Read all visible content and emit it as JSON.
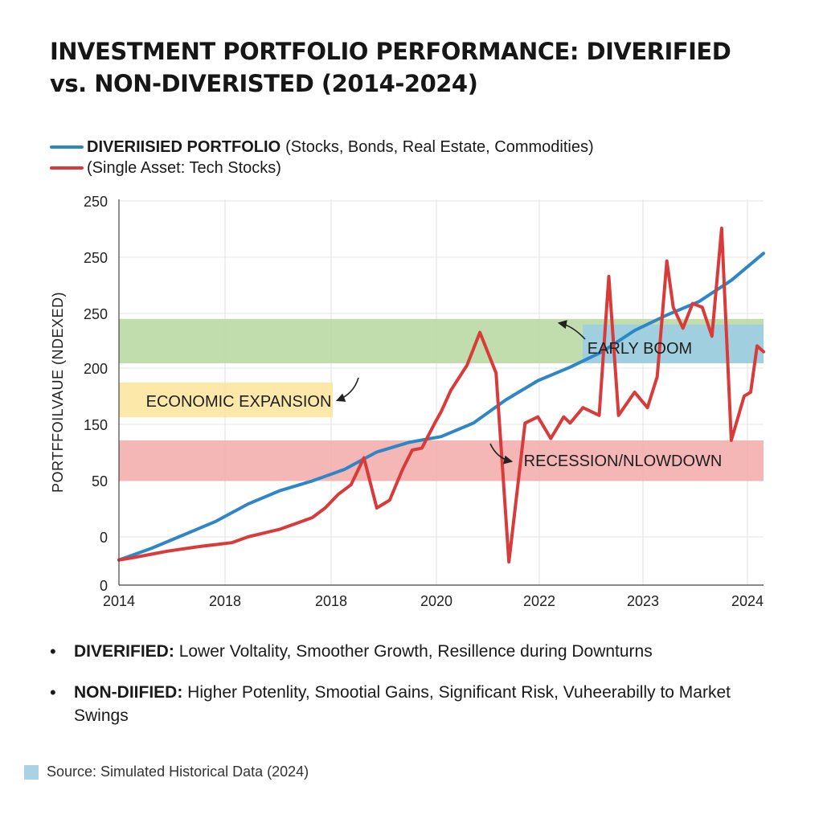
{
  "colors": {
    "diversified": "#2f86c6",
    "single_asset": "#d93a3a",
    "band_green": "#b6d7a0",
    "band_blue": "#9ecfe2",
    "band_yellow": "#fce6a0",
    "band_red": "#f3a9a9"
  },
  "legend": [
    {
      "name": "DIVERIISIED PORTFOLIO",
      "detail": "(Stocks, Bonds, Real Estate, Commodities)"
    },
    {
      "name": "",
      "detail": "(Single Asset: Tech Stocks)"
    }
  ],
  "bullets": [
    {
      "label": "DIVERIFIED:",
      "text": "Lower Voltality, Smoother Growth, Resillence during Downturns"
    },
    {
      "label": "NON-DIIFIED:",
      "text": "Higher Potenlity, Smootial Gains, Significant Risk, Vuheerabilly to Market Swings"
    }
  ],
  "source": "Source: Simulated Historical Data (2024)",
  "chart_data": {
    "type": "line",
    "title": "INVESTMENT PORTFOLIO PERFORMANCE: DIVERIFIED vs. NON-DIVERISTED (2014-2024)",
    "ylabel": "PORTFFOILVAUE (NDEXED)",
    "xlabel": "",
    "xlim": [
      0,
      1
    ],
    "ylim": [
      0,
      1
    ],
    "x_tick_labels": [
      "2014",
      "2018",
      "2018",
      "2020",
      "2022",
      "2023",
      "2024"
    ],
    "y_tick_labels": [
      "250",
      "250",
      "250",
      "200",
      "150",
      "50",
      "0",
      "0"
    ],
    "grid": true,
    "legend_position": "top-left",
    "bands": [
      {
        "label": "EARLY BOOM",
        "y_from": 0.575,
        "y_to": 0.69
      },
      {
        "label": "ECONOMIC EXPANSION",
        "y_from": 0.435,
        "y_to": 0.525
      },
      {
        "label": "RECESSION/NLOWDOWN",
        "y_from": 0.27,
        "y_to": 0.375
      }
    ],
    "series": [
      {
        "name": "DIVERIISIED PORTFOLIO",
        "x": [
          0,
          0.05,
          0.1,
          0.15,
          0.2,
          0.25,
          0.3,
          0.35,
          0.4,
          0.45,
          0.5,
          0.55,
          0.6,
          0.65,
          0.7,
          0.75,
          0.8,
          0.85,
          0.9,
          0.95,
          1
        ],
        "y": [
          0.065,
          0.095,
          0.13,
          0.165,
          0.21,
          0.245,
          0.27,
          0.3,
          0.345,
          0.37,
          0.385,
          0.42,
          0.48,
          0.53,
          0.565,
          0.605,
          0.66,
          0.7,
          0.735,
          0.79,
          0.86
        ]
      },
      {
        "name": "(Single Asset: Tech Stocks)",
        "x": [
          0,
          0.025,
          0.05,
          0.075,
          0.1,
          0.125,
          0.15,
          0.175,
          0.2,
          0.225,
          0.25,
          0.275,
          0.3,
          0.32,
          0.34,
          0.36,
          0.38,
          0.4,
          0.42,
          0.44,
          0.455,
          0.47,
          0.49,
          0.5,
          0.515,
          0.54,
          0.56,
          0.585,
          0.605,
          0.63,
          0.65,
          0.67,
          0.69,
          0.7,
          0.72,
          0.745,
          0.76,
          0.775,
          0.8,
          0.82,
          0.835,
          0.85,
          0.86,
          0.875,
          0.89,
          0.905,
          0.92,
          0.935,
          0.95,
          0.97,
          0.98,
          0.99,
          1
        ],
        "y": [
          0.065,
          0.072,
          0.08,
          0.088,
          0.094,
          0.1,
          0.105,
          0.11,
          0.125,
          0.135,
          0.145,
          0.16,
          0.175,
          0.2,
          0.235,
          0.26,
          0.33,
          0.2,
          0.22,
          0.3,
          0.35,
          0.355,
          0.42,
          0.45,
          0.505,
          0.57,
          0.655,
          0.55,
          0.06,
          0.42,
          0.436,
          0.38,
          0.436,
          0.42,
          0.46,
          0.44,
          0.8,
          0.44,
          0.5,
          0.46,
          0.54,
          0.84,
          0.72,
          0.666,
          0.73,
          0.72,
          0.645,
          0.925,
          0.375,
          0.49,
          0.5,
          0.62,
          0.605
        ]
      }
    ]
  }
}
